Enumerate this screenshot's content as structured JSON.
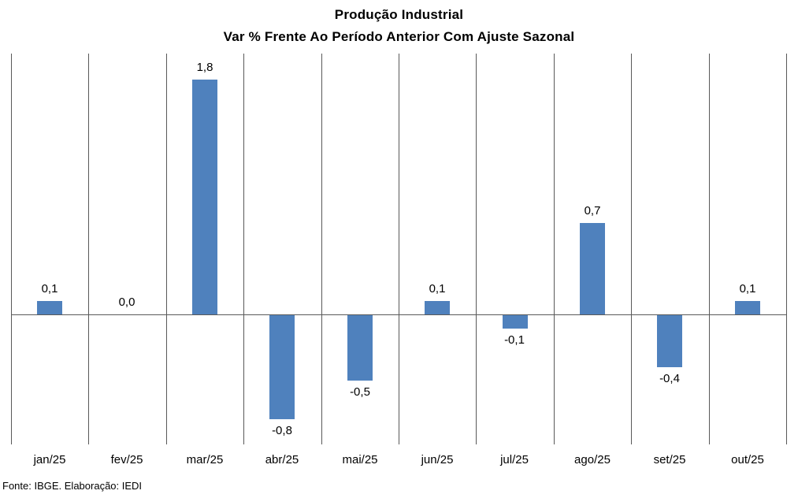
{
  "chart_data": {
    "type": "bar",
    "title": "Produção Industrial",
    "subtitle": "Var % Frente Ao Período Anterior Com Ajuste Sazonal",
    "categories": [
      "jan/25",
      "fev/25",
      "mar/25",
      "abr/25",
      "mai/25",
      "jun/25",
      "jul/25",
      "ago/25",
      "set/25",
      "out/25"
    ],
    "values": [
      0.1,
      0.0,
      1.8,
      -0.8,
      -0.5,
      0.1,
      -0.1,
      0.7,
      -0.4,
      0.1
    ],
    "value_labels": [
      "0,1",
      "0,0",
      "1,8",
      "-0,8",
      "-0,5",
      "0,1",
      "-0,1",
      "0,7",
      "-0,4",
      "0,1"
    ],
    "xlabel": "",
    "ylabel": "",
    "ylim": [
      -1.0,
      2.0
    ],
    "grid": "vertical-category-separators-only",
    "legend": "none",
    "bar_color": "#4F81BD",
    "line_color": "#595959"
  },
  "source": "Fonte: IBGE. Elaboração: IEDI"
}
